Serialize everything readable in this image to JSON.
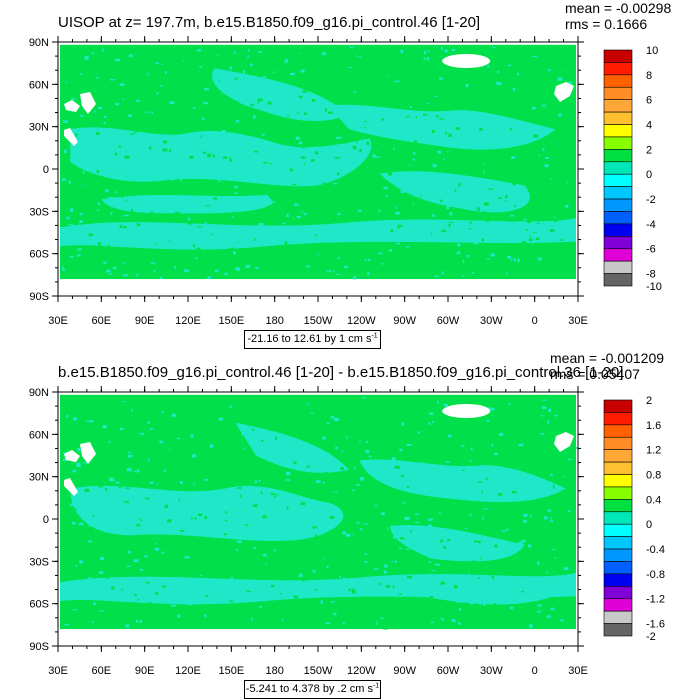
{
  "panels": [
    {
      "title": "UISOP at z= 197.7m, b.e15.B1850.f09_g16.pi_control.46 [1-20]",
      "mean_label": "mean = -0.00298",
      "rms_label": "rms = 0.1666",
      "range_label": "-21.16 to 12.61 by 1 cm s",
      "range_exponent": "-1",
      "lat_labels": [
        "90N",
        "60N",
        "30N",
        "0",
        "30S",
        "60S",
        "90S"
      ],
      "lon_labels": [
        "30E",
        "60E",
        "90E",
        "120E",
        "150E",
        "180",
        "150W",
        "120W",
        "90W",
        "60W",
        "30W",
        "0",
        "30E"
      ],
      "colorbar_labels": [
        "10",
        "8",
        "6",
        "4",
        "2",
        "0",
        "-2",
        "-4",
        "-6",
        "-8",
        "-10"
      ]
    },
    {
      "title": "b.e15.B1850.f09_g16.pi_control.46 [1-20] - b.e15.B1850.f09_g16.pi_control.36 [1-20]",
      "mean_label": "mean = -0.001209",
      "rms_label": "rms = 0.05407",
      "range_label": "-5.241 to 4.378 by .2 cm s",
      "range_exponent": "-1",
      "lat_labels": [
        "90N",
        "60N",
        "30N",
        "0",
        "30S",
        "60S",
        "90S"
      ],
      "lon_labels": [
        "30E",
        "60E",
        "90E",
        "120E",
        "150E",
        "180",
        "150W",
        "120W",
        "90W",
        "60W",
        "30W",
        "0",
        "30E"
      ],
      "colorbar_labels": [
        "2",
        "1.6",
        "1.2",
        "0.8",
        "0.4",
        "0",
        "-0.4",
        "-0.8",
        "-1.2",
        "-1.6",
        "-2"
      ]
    }
  ],
  "colors": {
    "green_field": "#00e04a",
    "cyan_field": "#1ee8c8",
    "colorbar": [
      "#c80000",
      "#ff1c00",
      "#ff6000",
      "#ff8c24",
      "#ffa838",
      "#ffc030",
      "#ffff00",
      "#88ff00",
      "#00e040",
      "#00e8b8",
      "#00ffff",
      "#00c8ff",
      "#0098ff",
      "#0060ff",
      "#0000f0",
      "#8000d8",
      "#e000d8",
      "#c8c8c8",
      "#646464"
    ]
  }
}
